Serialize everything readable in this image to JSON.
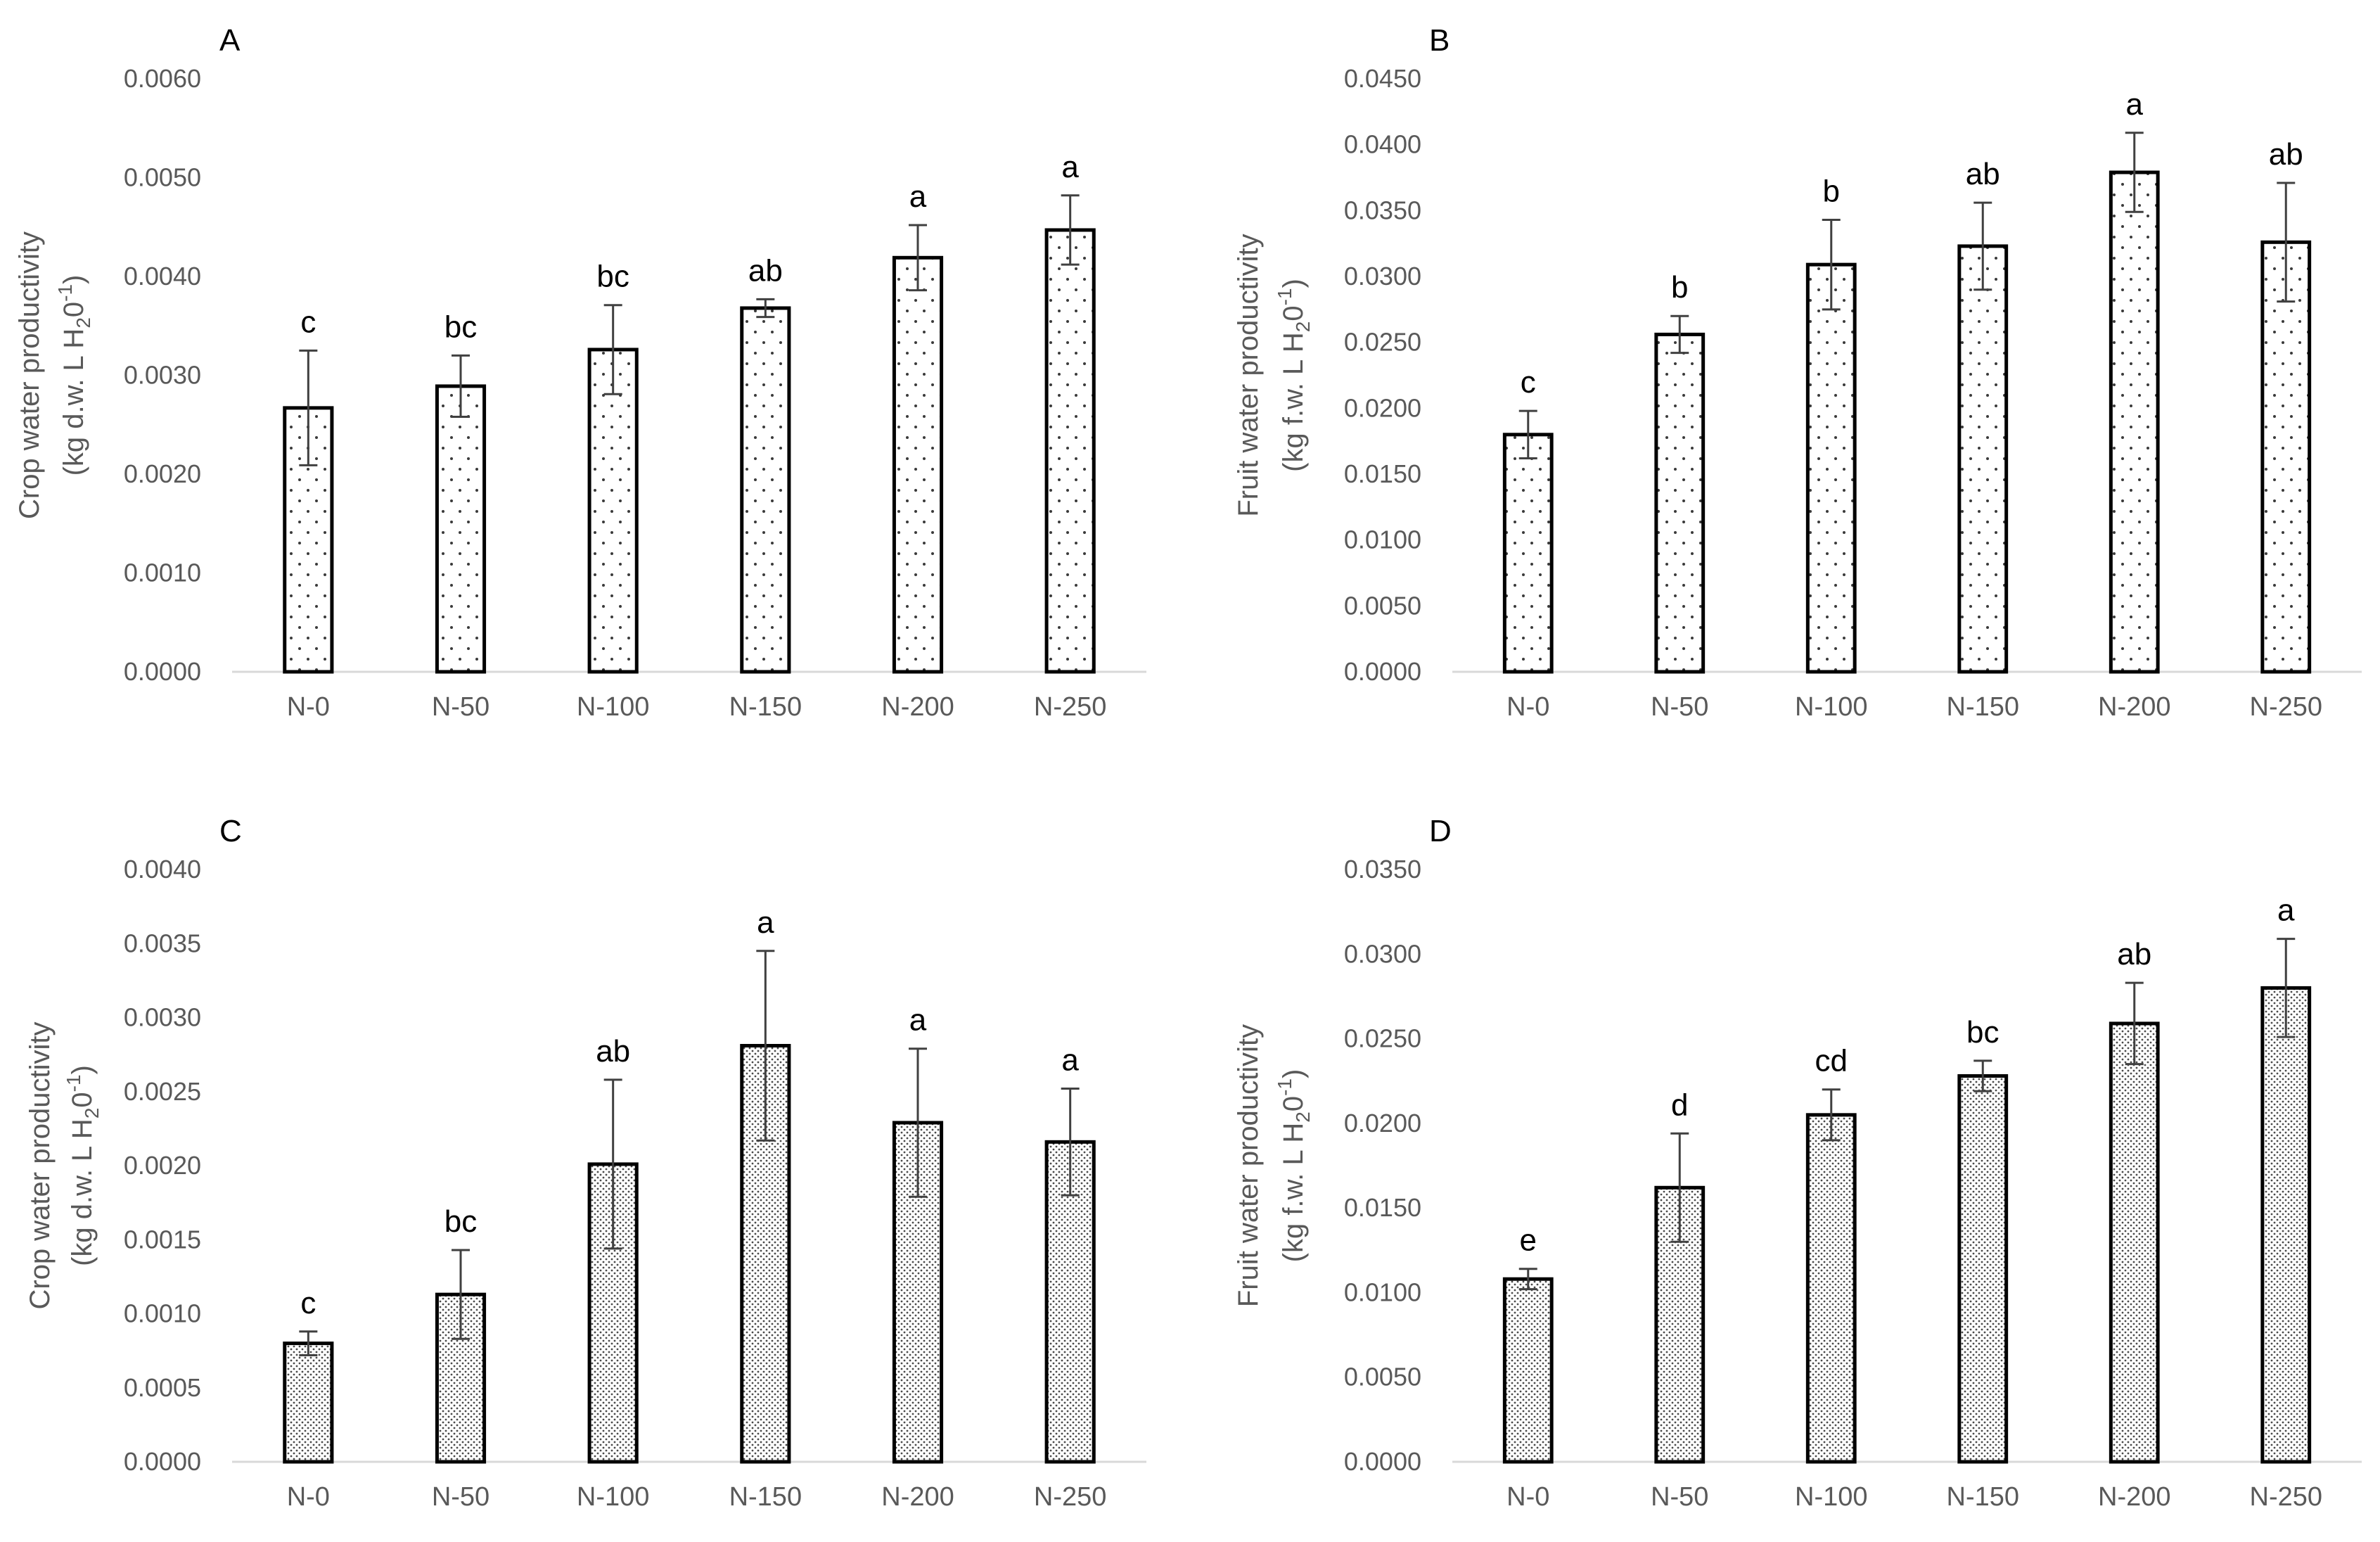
{
  "chart_data": [
    {
      "panel": "A",
      "type": "bar",
      "categories": [
        "N-0",
        "N-50",
        "N-100",
        "N-150",
        "N-200",
        "N-250"
      ],
      "values": [
        0.00267,
        0.00289,
        0.00326,
        0.00368,
        0.00419,
        0.00447
      ],
      "errors": [
        0.00058,
        0.00031,
        0.00045,
        9e-05,
        0.00033,
        0.00035
      ],
      "significance": [
        "c",
        "bc",
        "bc",
        "ab",
        "a",
        "a"
      ],
      "ylabel_line1": "Crop water productivity",
      "ylabel_line2_pre": "(kg d.w. L H",
      "ylabel_sub": "2",
      "ylabel_mid": "0",
      "ylabel_sup": "-1",
      "ylabel_post": ")",
      "ylim": [
        0,
        0.006
      ],
      "yticks": [
        "0.0000",
        "0.0010",
        "0.0020",
        "0.0030",
        "0.0040",
        "0.0050",
        "0.0060"
      ],
      "fill": "sparse-dots"
    },
    {
      "panel": "B",
      "type": "bar",
      "categories": [
        "N-0",
        "N-50",
        "N-100",
        "N-150",
        "N-200",
        "N-250"
      ],
      "values": [
        0.018,
        0.0256,
        0.0309,
        0.0323,
        0.0379,
        0.0326
      ],
      "errors": [
        0.0018,
        0.0014,
        0.0034,
        0.0033,
        0.003,
        0.0045
      ],
      "significance": [
        "c",
        "b",
        "b",
        "ab",
        "a",
        "ab"
      ],
      "ylabel_line1": "Fruit water productivity",
      "ylabel_line2_pre": "(kg f.w. L H",
      "ylabel_sub": "2",
      "ylabel_mid": "0",
      "ylabel_sup": "-1",
      "ylabel_post": ")",
      "ylim": [
        0,
        0.045
      ],
      "yticks": [
        "0.0000",
        "0.0050",
        "0.0100",
        "0.0150",
        "0.0200",
        "0.0250",
        "0.0300",
        "0.0350",
        "0.0400",
        "0.0450"
      ],
      "fill": "sparse-dots"
    },
    {
      "panel": "C",
      "type": "bar",
      "categories": [
        "N-0",
        "N-50",
        "N-100",
        "N-150",
        "N-200",
        "N-250"
      ],
      "values": [
        0.0008,
        0.00113,
        0.00201,
        0.00281,
        0.00229,
        0.00216
      ],
      "errors": [
        8e-05,
        0.0003,
        0.00057,
        0.00064,
        0.0005,
        0.00036
      ],
      "significance": [
        "c",
        "bc",
        "ab",
        "a",
        "a",
        "a"
      ],
      "ylabel_line1": "Crop water productivity",
      "ylabel_line2_pre": "(kg d.w. L H",
      "ylabel_sub": "2",
      "ylabel_mid": "0",
      "ylabel_sup": "-1",
      "ylabel_post": ")",
      "ylim": [
        0,
        0.004
      ],
      "yticks": [
        "0.0000",
        "0.0005",
        "0.0010",
        "0.0015",
        "0.0020",
        "0.0025",
        "0.0030",
        "0.0035",
        "0.0040"
      ],
      "fill": "dense-dots"
    },
    {
      "panel": "D",
      "type": "bar",
      "categories": [
        "N-0",
        "N-50",
        "N-100",
        "N-150",
        "N-200",
        "N-250"
      ],
      "values": [
        0.0108,
        0.0162,
        0.0205,
        0.0228,
        0.0259,
        0.028
      ],
      "errors": [
        0.0006,
        0.0032,
        0.0015,
        0.0009,
        0.0024,
        0.0029
      ],
      "significance": [
        "e",
        "d",
        "cd",
        "bc",
        "ab",
        "a"
      ],
      "ylabel_line1": "Fruit water productivity",
      "ylabel_line2_pre": "(kg f.w. L H",
      "ylabel_sub": "2",
      "ylabel_mid": "0",
      "ylabel_sup": "-1",
      "ylabel_post": ")",
      "ylim": [
        0,
        0.035
      ],
      "yticks": [
        "0.0000",
        "0.0050",
        "0.0100",
        "0.0150",
        "0.0200",
        "0.0250",
        "0.0300",
        "0.0350"
      ],
      "fill": "dense-dots"
    }
  ],
  "colors": {
    "bar_stroke": "#000000",
    "bar_fill": "#ffffff",
    "dot_color": "#3a3a3a",
    "axis_line": "#d9d9d9",
    "error_bar": "#404040",
    "text_gray": "#595959",
    "text_black": "#000000"
  }
}
